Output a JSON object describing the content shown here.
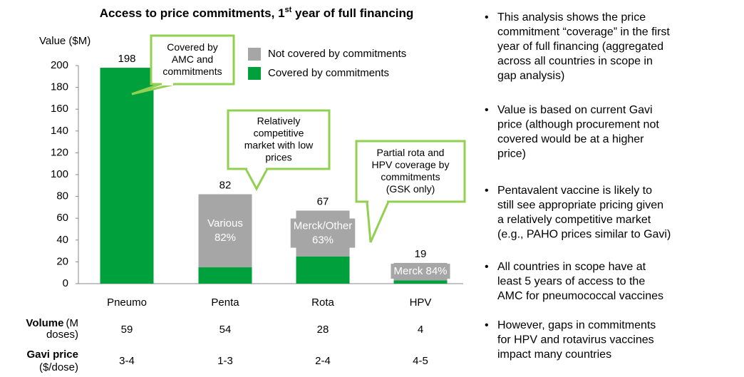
{
  "chart_data": {
    "type": "stacked_bar",
    "title": {
      "parts": [
        "Access to price commitments, 1",
        "st",
        " year of full financing"
      ]
    },
    "y_axis_label": "Value ($M)",
    "categories": [
      "Pneumo",
      "Penta",
      "Rota",
      "HPV"
    ],
    "series": [
      {
        "name": "Covered by commitments",
        "color": "#00a03c",
        "values": [
          198,
          15,
          25,
          3
        ]
      },
      {
        "name": "Not covered by commitments",
        "color": "#a6a6a6",
        "values": [
          0,
          67,
          42,
          16
        ]
      }
    ],
    "totals": [
      198,
      82,
      67,
      19
    ],
    "inner_labels": [
      null,
      [
        "Various",
        "82%"
      ],
      [
        "Merck/Other",
        "63%"
      ],
      [
        "Merck 84%"
      ]
    ],
    "ylim": [
      0,
      200
    ],
    "yticks": [
      0,
      20,
      40,
      60,
      80,
      100,
      120,
      140,
      160,
      180,
      200
    ],
    "callouts": [
      {
        "lines": [
          "Covered by",
          "AMC and",
          "commitments"
        ]
      },
      {
        "lines": [
          "Relatively",
          "competitive",
          "market with low",
          "prices"
        ]
      },
      {
        "lines": [
          "Partial rota and",
          "HPV coverage by",
          "commitments",
          "(GSK only)"
        ]
      }
    ],
    "table": [
      {
        "label": "Volume",
        "unit": [
          "(M",
          "doses)"
        ],
        "values": [
          "59",
          "54",
          "28",
          "4"
        ]
      },
      {
        "label": "Gavi price",
        "unit": [
          "($/dose)"
        ],
        "values": [
          "3-4",
          "1-3",
          "2-4",
          "4-5"
        ]
      }
    ],
    "bullets": [
      [
        "This analysis shows the price",
        "commitment “coverage” in the first",
        "year of full financing (aggregated",
        "across all countries in scope in",
        "gap analysis)"
      ],
      [
        "Value is based on current Gavi",
        "price (although procurement not",
        "covered would be at a higher",
        "price)"
      ],
      [
        "Pentavalent vaccine is likely to",
        "still see appropriate pricing given",
        "a relatively competitive market",
        "(e.g., PAHO prices similar to Gavi)"
      ],
      [
        "All countries in scope have at",
        "least 5 years of access to the",
        "AMC for pneumococcal vaccines"
      ],
      [
        "However, gaps in commitments",
        "for HPV and rotavirus vaccines",
        "impact many countries"
      ]
    ]
  }
}
